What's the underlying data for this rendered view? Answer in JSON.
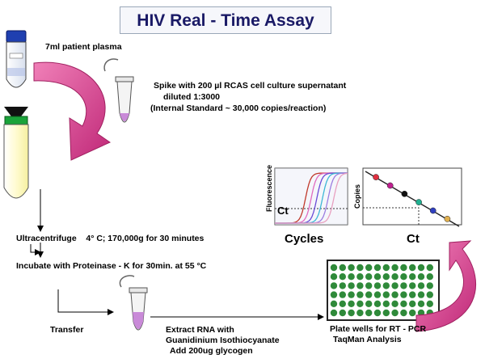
{
  "title": "HIV Real - Time Assay",
  "steps": {
    "plasma": "7ml patient plasma",
    "spike_line1": "Spike with 200",
    "spike_unit": "µl RCAS cell culture supernatant",
    "spike_line2": "diluted 1:3000",
    "spike_line3": "(Internal Standard ~ 30,000 copies/reaction)",
    "ultracentrifuge": "Ultracentrifuge",
    "ultracentrifuge_cond": "4° C; 170,000g for 30 minutes",
    "incubate": "Incubate with  Proteinase - K for 30min. at 55  °C",
    "transfer": "Transfer",
    "extract_line1": "Extract RNA with",
    "extract_line2": "Guanidinium Isothiocyanate",
    "extract_line3": "Add 200ug glycogen",
    "plate_line1": "Plate wells for RT  - PCR",
    "plate_line2": "TaqMan  Analysis"
  },
  "amplification_plot": {
    "ylabel": "Fluorescence",
    "xlabel": "Cycles",
    "threshold_label": "Ct",
    "curve_colors": [
      "#c0392b",
      "#e06bbf",
      "#6a4bd6",
      "#3db7d6",
      "#9b7de0",
      "#e8a0c0"
    ]
  },
  "standard_curve": {
    "ylabel": "Copies",
    "xlabel": "Ct",
    "point_colors": [
      "#e03040",
      "#c02090",
      "#101010",
      "#20b090",
      "#3040c0",
      "#e0b050"
    ]
  },
  "colors": {
    "arrow_pink": "#d63d8e",
    "tube_fill": "#fffbb0",
    "cap_green": "#1aa33a",
    "plate_green": "#2f8a3a"
  }
}
